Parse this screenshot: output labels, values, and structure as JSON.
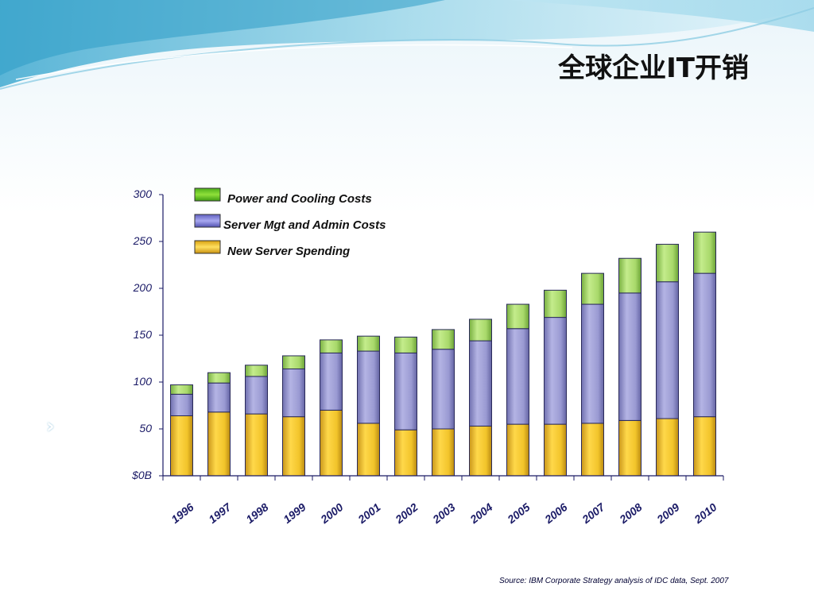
{
  "slide": {
    "title": "全球企业IT开销",
    "source_note": "Source: IBM Corporate Strategy analysis of IDC data, Sept. 2007",
    "side_marker": "›"
  },
  "colors": {
    "axis": "#1a1a66",
    "power_cooling": "#a8d86a",
    "server_admin": "#9a9ad2",
    "new_server": "#f2c42a",
    "bar_outline": "#2a2a5a",
    "header_wave": "#5db8d8"
  },
  "chart_data": {
    "type": "bar",
    "stacked": true,
    "categories": [
      "1996",
      "1997",
      "1998",
      "1999",
      "2000",
      "2001",
      "2002",
      "2003",
      "2004",
      "2005",
      "2006",
      "2007",
      "2008",
      "2009",
      "2010"
    ],
    "series": [
      {
        "name": "New Server Spending",
        "values": [
          64,
          68,
          66,
          63,
          70,
          56,
          49,
          50,
          53,
          55,
          55,
          56,
          59,
          61,
          63
        ]
      },
      {
        "name": "Server Mgt and Admin Costs",
        "values": [
          23,
          31,
          40,
          51,
          61,
          77,
          82,
          85,
          91,
          102,
          114,
          127,
          136,
          146,
          153
        ]
      },
      {
        "name": "Power and Cooling Costs",
        "values": [
          10,
          11,
          12,
          14,
          14,
          16,
          17,
          21,
          23,
          26,
          29,
          33,
          37,
          40,
          44
        ]
      }
    ],
    "legend_order": [
      "Power and Cooling Costs",
      "Server Mgt and Admin Costs",
      "New Server Spending"
    ],
    "legend_position": "top-left",
    "y_ticks": [
      "$0B",
      "50",
      "100",
      "150",
      "200",
      "250",
      "300"
    ],
    "y_tick_values": [
      0,
      50,
      100,
      150,
      200,
      250,
      300
    ],
    "ylim": [
      0,
      300
    ],
    "grid": false,
    "title": "",
    "xlabel": "",
    "ylabel": ""
  }
}
